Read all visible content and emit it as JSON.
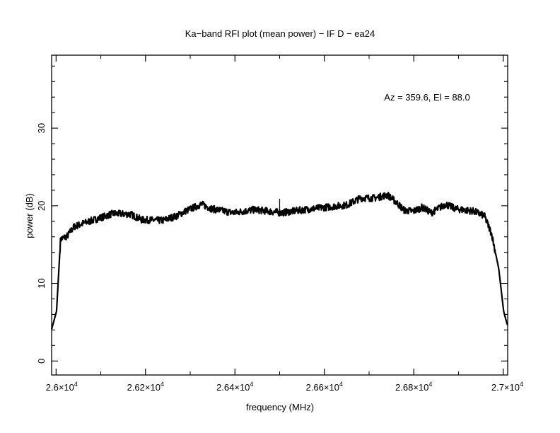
{
  "chart_data": {
    "type": "line",
    "title": "Ka−band RFI plot (mean power) − IF D − ea24",
    "xlabel": "frequency (MHz)",
    "ylabel": "power (dB)",
    "annotation": "Az = 359.6, El = 88.0",
    "xlim": [
      25990,
      27010
    ],
    "ylim": [
      -1.8,
      39.4
    ],
    "x_ticks": [
      26000,
      26200,
      26400,
      26600,
      26800,
      27000
    ],
    "x_tick_labels": [
      {
        "mant": "2.6",
        "exp": "4"
      },
      {
        "mant": "2.62",
        "exp": "4"
      },
      {
        "mant": "2.64",
        "exp": "4"
      },
      {
        "mant": "2.66",
        "exp": "4"
      },
      {
        "mant": "2.68",
        "exp": "4"
      },
      {
        "mant": "2.7",
        "exp": "4"
      }
    ],
    "y_ticks": [
      0,
      10,
      20,
      30
    ],
    "y_tick_labels": [
      "0",
      "10",
      "20",
      "30"
    ],
    "grid": false,
    "color": "#000000",
    "series": [
      {
        "name": "mean power",
        "x": [
          25990,
          26001,
          26010,
          26025,
          26040,
          26064,
          26096,
          26127,
          26167,
          26191,
          26238,
          26270,
          26289,
          26309,
          26325,
          26349,
          26396,
          26444,
          26504,
          26555,
          26618,
          26650,
          26681,
          26713,
          26741,
          26760,
          26779,
          26799,
          26819,
          26839,
          26871,
          26894,
          26934,
          26958,
          26974,
          26990,
          27001,
          27009
        ],
        "y": [
          4.1,
          6.4,
          15.7,
          16.1,
          17.3,
          17.8,
          18.4,
          19.0,
          18.9,
          18.2,
          18.1,
          18.7,
          19.3,
          19.8,
          20.2,
          19.6,
          19.1,
          19.5,
          19.1,
          19.5,
          19.9,
          20.1,
          21.0,
          21.0,
          21.4,
          20.5,
          19.4,
          19.3,
          19.8,
          19.1,
          20.2,
          19.6,
          19.3,
          18.7,
          16.4,
          11.9,
          6.4,
          4.7
        ]
      }
    ],
    "spikes": [
      {
        "x": 26500,
        "y": 20.9
      }
    ]
  }
}
